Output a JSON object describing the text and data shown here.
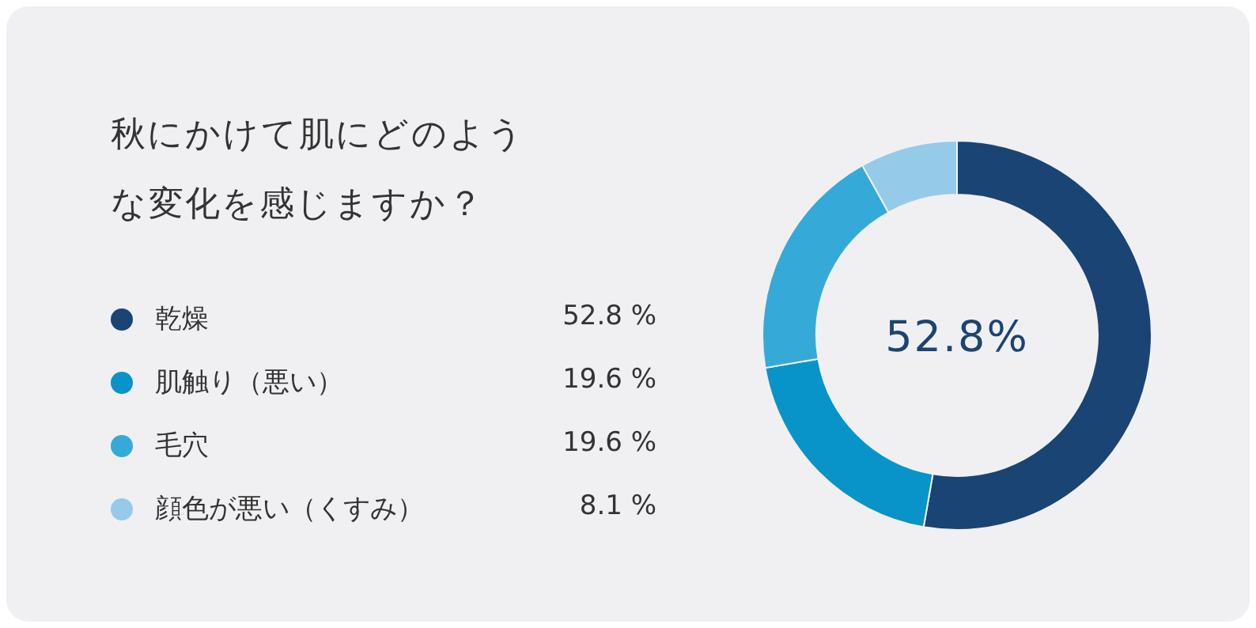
{
  "chart_data": {
    "type": "donut",
    "title": "秋にかけて肌にどのような変化を感じますか？",
    "categories": [
      "乾燥",
      "肌触り（悪い）",
      "毛穴",
      "顔色が悪い（くすみ）"
    ],
    "values": [
      52.8,
      19.6,
      19.6,
      8.1
    ],
    "colors": [
      "#1a4473",
      "#0894c9",
      "#35aad9",
      "#95cbe8"
    ],
    "value_labels": [
      "52.8 %",
      "19.6 %",
      "19.6 %",
      "8.1 %"
    ],
    "legend": "left",
    "annotations": [
      "52.8%"
    ]
  }
}
